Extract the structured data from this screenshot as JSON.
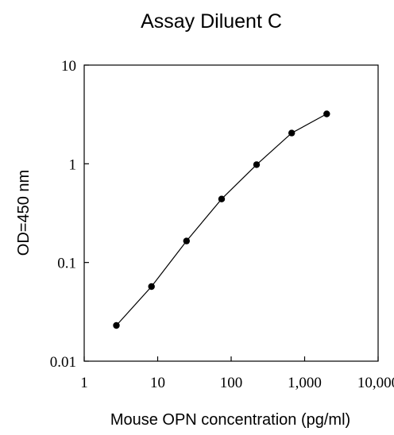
{
  "chart_data": {
    "type": "line",
    "title": "Assay Diluent C",
    "xlabel": "Mouse OPN concentration (pg/ml)",
    "ylabel": "OD=450 nm",
    "x_scale": "log",
    "y_scale": "log",
    "xlim": [
      1,
      10000
    ],
    "ylim": [
      0.01,
      10
    ],
    "x_ticks": [
      {
        "value": 1,
        "label": "1"
      },
      {
        "value": 10,
        "label": "10"
      },
      {
        "value": 100,
        "label": "100"
      },
      {
        "value": 1000,
        "label": "1,000"
      },
      {
        "value": 10000,
        "label": "10,000"
      }
    ],
    "y_ticks": [
      {
        "value": 0.01,
        "label": "0.01"
      },
      {
        "value": 0.1,
        "label": "0.1"
      },
      {
        "value": 1,
        "label": "1"
      },
      {
        "value": 10,
        "label": "10"
      }
    ],
    "grid": false,
    "legend": "none",
    "colors": {
      "line": "#000000",
      "marker": "#000000",
      "axis": "#000000"
    },
    "series": [
      {
        "x": [
          2.74,
          8.23,
          24.7,
          74.1,
          222,
          667,
          2000
        ],
        "y": [
          0.023,
          0.057,
          0.165,
          0.44,
          0.98,
          2.05,
          3.2
        ]
      }
    ]
  }
}
